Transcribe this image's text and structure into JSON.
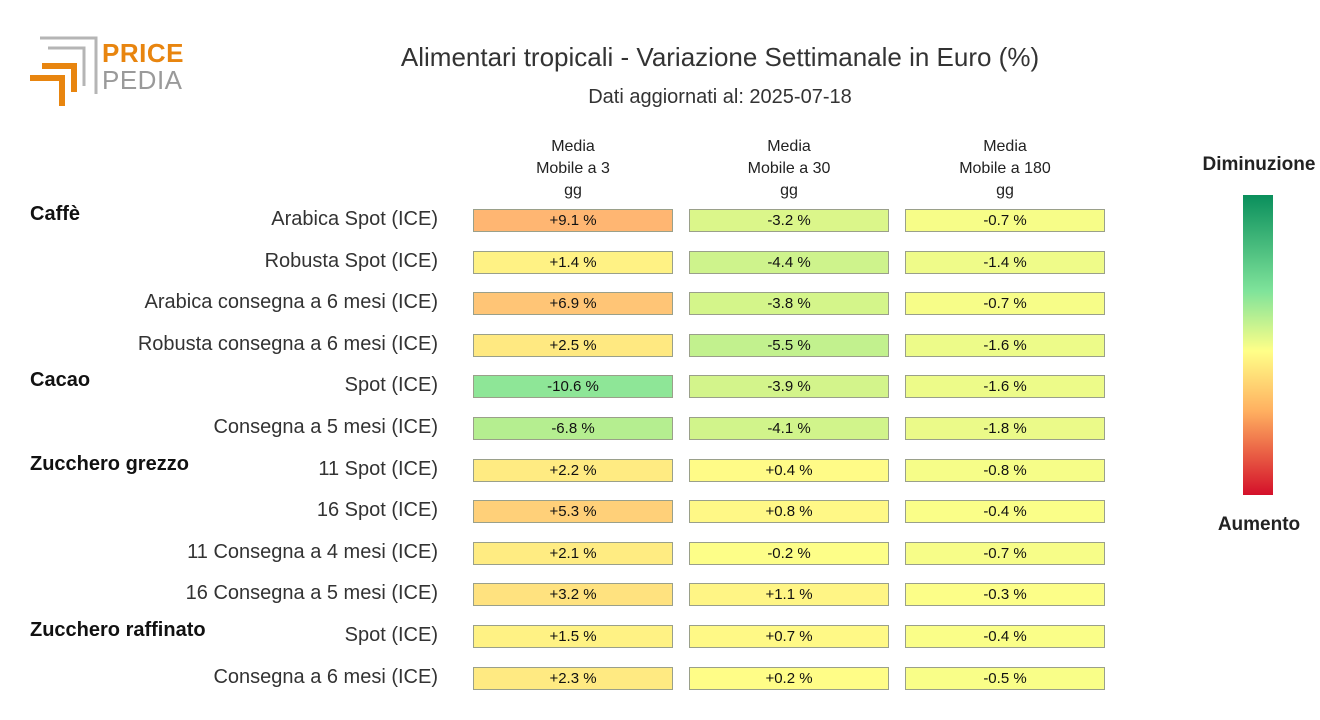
{
  "logo": {
    "line1": "PRICE",
    "line2": "PEDIA"
  },
  "title": "Alimentari tropicali - Variazione Settimanale in Euro (%)",
  "subtitle": "Dati aggiornati al: 2025-07-18",
  "legend": {
    "top": "Diminuzione",
    "bottom": "Aumento"
  },
  "colors": {
    "decrease": "#0a8f5c",
    "neutral": "#ffff88",
    "increase_mid": "#ffb060",
    "increase": "#d4102a"
  },
  "chart_data": {
    "type": "heatmap",
    "columns": [
      [
        "Media",
        "Mobile a 3",
        "gg"
      ],
      [
        "Media",
        "Mobile a 30",
        "gg"
      ],
      [
        "Media",
        "Mobile a 180",
        "gg"
      ]
    ],
    "groups": [
      {
        "name": "Caffè",
        "rows": [
          {
            "label": "Arabica Spot (ICE)",
            "values": [
              9.1,
              -3.2,
              -0.7
            ],
            "text": [
              "+9.1 %",
              "-3.2 %",
              "-0.7 %"
            ]
          },
          {
            "label": "Robusta Spot (ICE)",
            "values": [
              1.4,
              -4.4,
              -1.4
            ],
            "text": [
              "+1.4 %",
              "-4.4 %",
              "-1.4 %"
            ]
          },
          {
            "label": "Arabica consegna a 6 mesi (ICE)",
            "values": [
              6.9,
              -3.8,
              -0.7
            ],
            "text": [
              "+6.9 %",
              "-3.8 %",
              "-0.7 %"
            ]
          },
          {
            "label": "Robusta consegna a 6 mesi (ICE)",
            "values": [
              2.5,
              -5.5,
              -1.6
            ],
            "text": [
              "+2.5 %",
              "-5.5 %",
              "-1.6 %"
            ]
          }
        ]
      },
      {
        "name": "Cacao",
        "rows": [
          {
            "label": "Spot (ICE)",
            "values": [
              -10.6,
              -3.9,
              -1.6
            ],
            "text": [
              "-10.6 %",
              "-3.9 %",
              "-1.6 %"
            ]
          },
          {
            "label": "Consegna a 5 mesi (ICE)",
            "values": [
              -6.8,
              -4.1,
              -1.8
            ],
            "text": [
              "-6.8 %",
              "-4.1 %",
              "-1.8 %"
            ]
          }
        ]
      },
      {
        "name": "Zucchero grezzo",
        "rows": [
          {
            "label": "11 Spot (ICE)",
            "values": [
              2.2,
              0.4,
              -0.8
            ],
            "text": [
              "+2.2 %",
              "+0.4 %",
              "-0.8 %"
            ]
          },
          {
            "label": "16 Spot (ICE)",
            "values": [
              5.3,
              0.8,
              -0.4
            ],
            "text": [
              "+5.3 %",
              "+0.8 %",
              "-0.4 %"
            ]
          },
          {
            "label": "11 Consegna a 4 mesi (ICE)",
            "values": [
              2.1,
              -0.2,
              -0.7
            ],
            "text": [
              "+2.1 %",
              "-0.2 %",
              "-0.7 %"
            ]
          },
          {
            "label": "16 Consegna a 5 mesi (ICE)",
            "values": [
              3.2,
              1.1,
              -0.3
            ],
            "text": [
              "+3.2 %",
              "+1.1 %",
              "-0.3 %"
            ]
          }
        ]
      },
      {
        "name": "Zucchero raffinato",
        "rows": [
          {
            "label": "Spot (ICE)",
            "values": [
              1.5,
              0.7,
              -0.4
            ],
            "text": [
              "+1.5 %",
              "+0.7 %",
              "-0.4 %"
            ]
          },
          {
            "label": "Consegna a 6 mesi (ICE)",
            "values": [
              2.3,
              0.2,
              -0.5
            ],
            "text": [
              "+2.3 %",
              "+0.2 %",
              "-0.5 %"
            ]
          }
        ]
      }
    ]
  }
}
